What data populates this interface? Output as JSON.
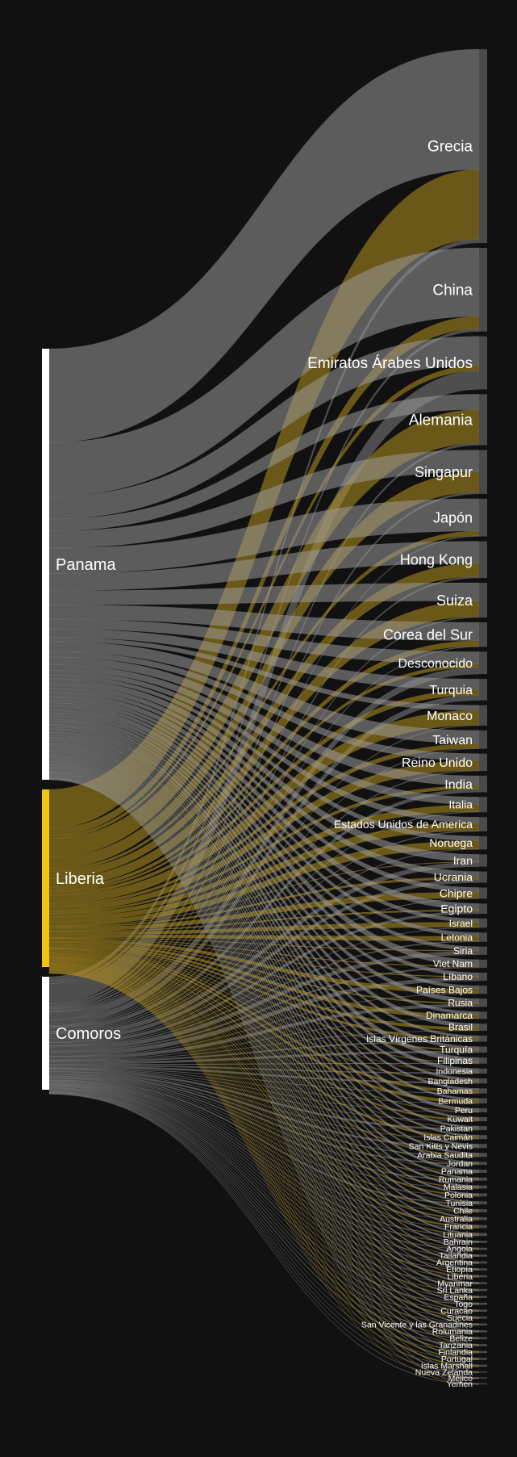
{
  "colors": {
    "background": "#111111",
    "panama": "#ffffff",
    "liberia": "#f2c314",
    "comoros": "#ffffff",
    "flow_gray": "#9a9a9a",
    "flow_gold": "#b59320",
    "target_bar": "#4a4a4a"
  },
  "sources": [
    {
      "name": "Panama",
      "color": "#ffffff"
    },
    {
      "name": "Liberia",
      "color": "#f2c314"
    },
    {
      "name": "Comoros",
      "color": "#ffffff"
    }
  ],
  "targets": [
    {
      "name": "Grecia",
      "weight": 190,
      "panama": 0.62,
      "liberia": 0.36,
      "comoros": 0.02
    },
    {
      "name": "China",
      "weight": 82,
      "panama": 0.82,
      "liberia": 0.15,
      "comoros": 0.03
    },
    {
      "name": "Emiratos Árabes Unidos",
      "weight": 52,
      "panama": 0.55,
      "liberia": 0.1,
      "comoros": 0.35
    },
    {
      "name": "Alemania",
      "weight": 50,
      "panama": 0.3,
      "liberia": 0.66,
      "comoros": 0.04
    },
    {
      "name": "Singapur",
      "weight": 43,
      "panama": 0.5,
      "liberia": 0.46,
      "comoros": 0.04
    },
    {
      "name": "Japón",
      "weight": 37,
      "panama": 0.86,
      "liberia": 0.12,
      "comoros": 0.02
    },
    {
      "name": "Hong Kong",
      "weight": 36,
      "panama": 0.6,
      "liberia": 0.36,
      "comoros": 0.04
    },
    {
      "name": "Suiza",
      "weight": 34,
      "panama": 0.52,
      "liberia": 0.45,
      "comoros": 0.03
    },
    {
      "name": "Corea del Sur",
      "weight": 24,
      "panama": 0.75,
      "liberia": 0.22,
      "comoros": 0.03
    },
    {
      "name": "Desconocido",
      "weight": 22,
      "panama": 0.55,
      "liberia": 0.15,
      "comoros": 0.3
    },
    {
      "name": "Turquia",
      "weight": 21,
      "panama": 0.5,
      "liberia": 0.25,
      "comoros": 0.25
    },
    {
      "name": "Monaco",
      "weight": 20,
      "panama": 0.25,
      "liberia": 0.72,
      "comoros": 0.03
    },
    {
      "name": "Taiwan",
      "weight": 18,
      "panama": 0.72,
      "liberia": 0.25,
      "comoros": 0.03
    },
    {
      "name": "Reino Unido",
      "weight": 17,
      "panama": 0.4,
      "liberia": 0.55,
      "comoros": 0.05
    },
    {
      "name": "India",
      "weight": 16,
      "panama": 0.6,
      "liberia": 0.2,
      "comoros": 0.2
    },
    {
      "name": "Italia",
      "weight": 15,
      "panama": 0.5,
      "liberia": 0.45,
      "comoros": 0.05
    },
    {
      "name": "Estados Unidos de America",
      "weight": 14,
      "panama": 0.4,
      "liberia": 0.55,
      "comoros": 0.05
    },
    {
      "name": "Noruega",
      "weight": 13,
      "panama": 0.35,
      "liberia": 0.6,
      "comoros": 0.05
    },
    {
      "name": "Iran",
      "weight": 12,
      "panama": 0.6,
      "liberia": 0.05,
      "comoros": 0.35
    },
    {
      "name": "Ucrania",
      "weight": 11,
      "panama": 0.5,
      "liberia": 0.2,
      "comoros": 0.3
    },
    {
      "name": "Chipre",
      "weight": 11,
      "panama": 0.4,
      "liberia": 0.55,
      "comoros": 0.05
    },
    {
      "name": "Egipto",
      "weight": 10,
      "panama": 0.6,
      "liberia": 0.15,
      "comoros": 0.25
    },
    {
      "name": "Israel",
      "weight": 9,
      "panama": 0.4,
      "liberia": 0.55,
      "comoros": 0.05
    },
    {
      "name": "Letonia",
      "weight": 9,
      "panama": 0.4,
      "liberia": 0.5,
      "comoros": 0.1
    },
    {
      "name": "Siria",
      "weight": 8,
      "panama": 0.45,
      "liberia": 0.1,
      "comoros": 0.45
    },
    {
      "name": "Viet Nam",
      "weight": 8,
      "panama": 0.75,
      "liberia": 0.1,
      "comoros": 0.15
    },
    {
      "name": "Líbano",
      "weight": 8,
      "panama": 0.45,
      "liberia": 0.1,
      "comoros": 0.45
    },
    {
      "name": "Países Bajos",
      "weight": 8,
      "panama": 0.4,
      "liberia": 0.55,
      "comoros": 0.05
    },
    {
      "name": "Rusia",
      "weight": 8,
      "panama": 0.5,
      "liberia": 0.15,
      "comoros": 0.35
    },
    {
      "name": "Dinamarca",
      "weight": 7,
      "panama": 0.4,
      "liberia": 0.55,
      "comoros": 0.05
    },
    {
      "name": "Brasil",
      "weight": 7,
      "panama": 0.55,
      "liberia": 0.4,
      "comoros": 0.05
    },
    {
      "name": "Islas Vírgenes Británicas",
      "weight": 6,
      "panama": 0.4,
      "liberia": 0.4,
      "comoros": 0.2
    },
    {
      "name": "Turquía",
      "weight": 6,
      "panama": 0.5,
      "liberia": 0.2,
      "comoros": 0.3
    },
    {
      "name": "Filipinas",
      "weight": 6,
      "panama": 0.8,
      "liberia": 0.1,
      "comoros": 0.1
    },
    {
      "name": "Indonesia",
      "weight": 5,
      "panama": 0.7,
      "liberia": 0.1,
      "comoros": 0.2
    },
    {
      "name": "Bangladesh",
      "weight": 5,
      "panama": 0.5,
      "liberia": 0.2,
      "comoros": 0.3
    },
    {
      "name": "Bahamas",
      "weight": 5,
      "panama": 0.4,
      "liberia": 0.5,
      "comoros": 0.1
    },
    {
      "name": "Bermuda",
      "weight": 5,
      "panama": 0.4,
      "liberia": 0.55,
      "comoros": 0.05
    },
    {
      "name": "Peru",
      "weight": 4,
      "panama": 0.8,
      "liberia": 0.15,
      "comoros": 0.05
    },
    {
      "name": "Kuwait",
      "weight": 4,
      "panama": 0.5,
      "liberia": 0.4,
      "comoros": 0.1
    },
    {
      "name": "Pakistan",
      "weight": 4,
      "panama": 0.5,
      "liberia": 0.1,
      "comoros": 0.4
    },
    {
      "name": "Islas Caimán",
      "weight": 4,
      "panama": 0.4,
      "liberia": 0.5,
      "comoros": 0.1
    },
    {
      "name": "San Kitts y Nevis",
      "weight": 4,
      "panama": 0.5,
      "liberia": 0.1,
      "comoros": 0.4
    },
    {
      "name": "Arabia Saudita",
      "weight": 4,
      "panama": 0.5,
      "liberia": 0.3,
      "comoros": 0.2
    },
    {
      "name": "Jordan",
      "weight": 3,
      "panama": 0.5,
      "liberia": 0.1,
      "comoros": 0.4
    },
    {
      "name": "Panama",
      "weight": 3,
      "panama": 0.8,
      "liberia": 0.1,
      "comoros": 0.1
    },
    {
      "name": "Rumania",
      "weight": 3,
      "panama": 0.5,
      "liberia": 0.2,
      "comoros": 0.3
    },
    {
      "name": "Malasia",
      "weight": 3,
      "panama": 0.6,
      "liberia": 0.3,
      "comoros": 0.1
    },
    {
      "name": "Polonia",
      "weight": 3,
      "panama": 0.5,
      "liberia": 0.4,
      "comoros": 0.1
    },
    {
      "name": "Tunisia",
      "weight": 3,
      "panama": 0.5,
      "liberia": 0.1,
      "comoros": 0.4
    },
    {
      "name": "Chile",
      "weight": 3,
      "panama": 0.6,
      "liberia": 0.3,
      "comoros": 0.1
    },
    {
      "name": "Australia",
      "weight": 3,
      "panama": 0.5,
      "liberia": 0.4,
      "comoros": 0.1
    },
    {
      "name": "Francia",
      "weight": 3,
      "panama": 0.4,
      "liberia": 0.5,
      "comoros": 0.1
    },
    {
      "name": "Lituania",
      "weight": 3,
      "panama": 0.5,
      "liberia": 0.3,
      "comoros": 0.2
    },
    {
      "name": "Bahrain",
      "weight": 2,
      "panama": 0.5,
      "liberia": 0.2,
      "comoros": 0.3
    },
    {
      "name": "Angola",
      "weight": 2,
      "panama": 0.5,
      "liberia": 0.2,
      "comoros": 0.3
    },
    {
      "name": "Tailandia",
      "weight": 2,
      "panama": 0.6,
      "liberia": 0.2,
      "comoros": 0.2
    },
    {
      "name": "Argentina",
      "weight": 2,
      "panama": 0.6,
      "liberia": 0.3,
      "comoros": 0.1
    },
    {
      "name": "Etiopía",
      "weight": 2,
      "panama": 0.6,
      "liberia": 0.2,
      "comoros": 0.2
    },
    {
      "name": "Liberia",
      "weight": 2,
      "panama": 0.4,
      "liberia": 0.5,
      "comoros": 0.1
    },
    {
      "name": "Myanmar",
      "weight": 2,
      "panama": 0.7,
      "liberia": 0.1,
      "comoros": 0.2
    },
    {
      "name": "Sri Lanka",
      "weight": 2,
      "panama": 0.6,
      "liberia": 0.2,
      "comoros": 0.2
    },
    {
      "name": "España",
      "weight": 2,
      "panama": 0.5,
      "liberia": 0.4,
      "comoros": 0.1
    },
    {
      "name": "Togo",
      "weight": 2,
      "panama": 0.4,
      "liberia": 0.2,
      "comoros": 0.4
    },
    {
      "name": "Curacao",
      "weight": 2,
      "panama": 0.5,
      "liberia": 0.3,
      "comoros": 0.2
    },
    {
      "name": "Suecia",
      "weight": 2,
      "panama": 0.4,
      "liberia": 0.5,
      "comoros": 0.1
    },
    {
      "name": "San Vicente y las Granadines",
      "weight": 2,
      "panama": 0.5,
      "liberia": 0.2,
      "comoros": 0.3
    },
    {
      "name": "Rolumania",
      "weight": 2,
      "panama": 0.5,
      "liberia": 0.2,
      "comoros": 0.3
    },
    {
      "name": "Belize",
      "weight": 2,
      "panama": 0.5,
      "liberia": 0.2,
      "comoros": 0.3
    },
    {
      "name": "Tanzania",
      "weight": 2,
      "panama": 0.4,
      "liberia": 0.2,
      "comoros": 0.4
    },
    {
      "name": "Finlandia",
      "weight": 2,
      "panama": 0.4,
      "liberia": 0.5,
      "comoros": 0.1
    },
    {
      "name": "Portugal",
      "weight": 2,
      "panama": 0.4,
      "liberia": 0.5,
      "comoros": 0.1
    },
    {
      "name": "Islas Marshall",
      "weight": 2,
      "panama": 0.3,
      "liberia": 0.6,
      "comoros": 0.1
    },
    {
      "name": "Nueva Zelanda",
      "weight": 1,
      "panama": 0.5,
      "liberia": 0.4,
      "comoros": 0.1
    },
    {
      "name": "Méjico",
      "weight": 1,
      "panama": 0.6,
      "liberia": 0.3,
      "comoros": 0.1
    },
    {
      "name": "Yemen",
      "weight": 1,
      "panama": 0.5,
      "liberia": 0.1,
      "comoros": 0.4
    }
  ]
}
